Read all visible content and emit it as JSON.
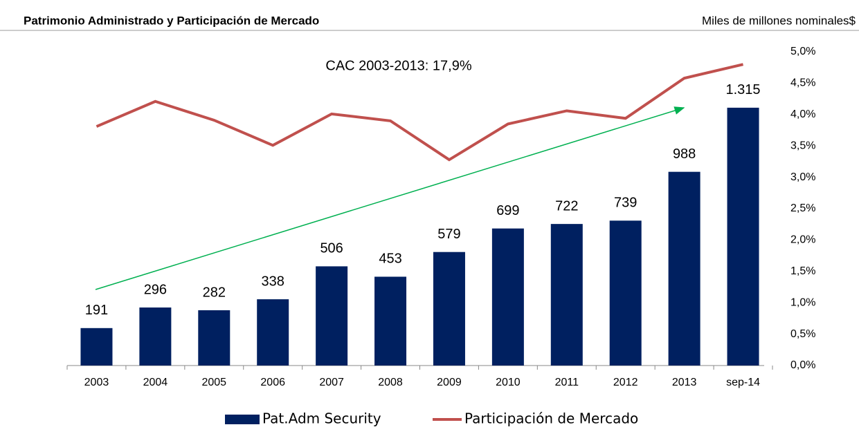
{
  "chart_data": {
    "type": "bar_line",
    "title": "Patrimonio Administrado y Participación de Mercado",
    "subtitle": "Miles de millones  nominales$",
    "annotation": "CAC 2003-2013: 17,9%",
    "categories": [
      "2003",
      "2004",
      "2005",
      "2006",
      "2007",
      "2008",
      "2009",
      "2010",
      "2011",
      "2012",
      "2013",
      "sep-14"
    ],
    "series": [
      {
        "name": "Pat.Adm Security",
        "type": "bar",
        "color": "#002060",
        "values": [
          191,
          296,
          282,
          338,
          506,
          453,
          579,
          699,
          722,
          739,
          988,
          1315
        ],
        "value_labels": [
          "191",
          "296",
          "282",
          "338",
          "506",
          "453",
          "579",
          "699",
          "722",
          "739",
          "988",
          "1.315"
        ]
      },
      {
        "name": "Participación de Mercado",
        "type": "line",
        "color": "#c0504d",
        "axis": "y2",
        "values": [
          3.81,
          4.21,
          3.91,
          3.51,
          4.01,
          3.9,
          3.28,
          3.85,
          4.06,
          3.94,
          4.58,
          4.8
        ]
      }
    ],
    "ylim": [
      0,
      1600
    ],
    "y2lim": [
      0,
      5
    ],
    "y2ticks": [
      {
        "value": 0,
        "label": "0,0%"
      },
      {
        "value": 0.5,
        "label": "0,5%"
      },
      {
        "value": 1,
        "label": "1,0%"
      },
      {
        "value": 1.5,
        "label": "1,5%"
      },
      {
        "value": 2,
        "label": "2,0%"
      },
      {
        "value": 2.5,
        "label": "2,5%"
      },
      {
        "value": 3,
        "label": "3,0%"
      },
      {
        "value": 3.5,
        "label": "3,5%"
      },
      {
        "value": 4,
        "label": "4,0%"
      },
      {
        "value": 4.5,
        "label": "4,5%"
      },
      {
        "value": 5,
        "label": "5,0%"
      }
    ],
    "legend": "bottom"
  }
}
